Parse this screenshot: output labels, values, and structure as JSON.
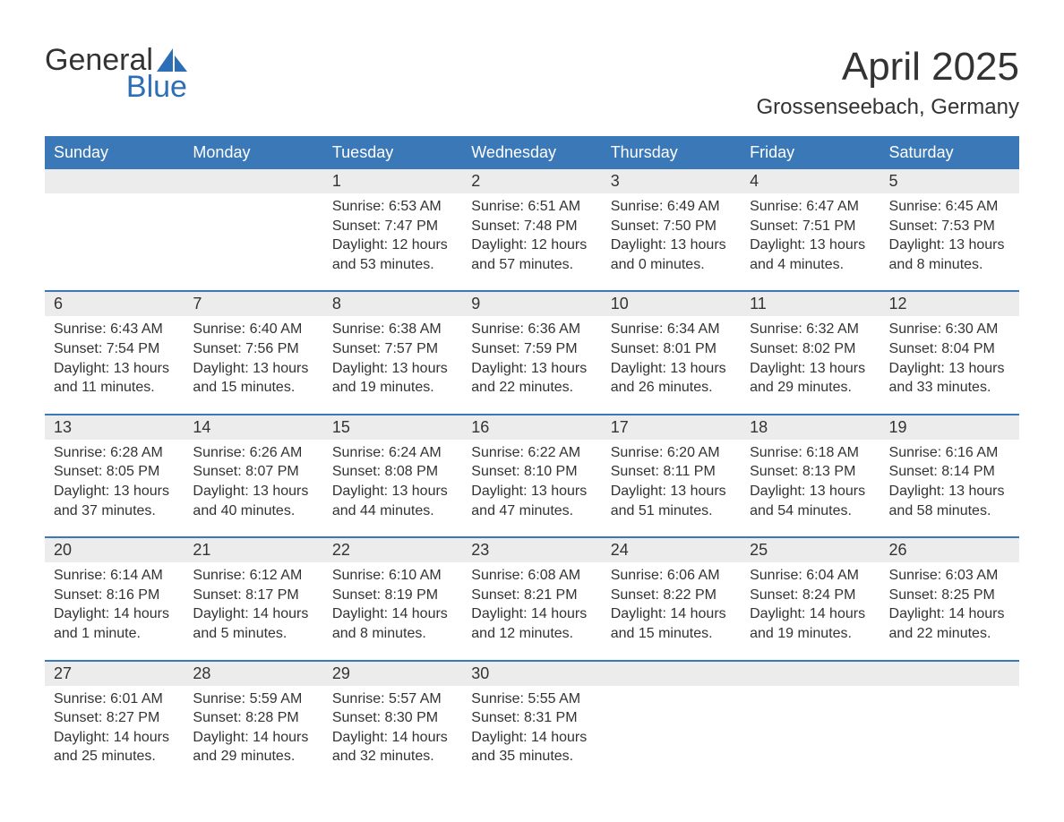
{
  "logo": {
    "text_top": "General",
    "text_bottom": "Blue",
    "icon_color": "#2c6fb7"
  },
  "title": "April 2025",
  "location": "Grossenseebach, Germany",
  "colors": {
    "header_bg": "#3b78b8",
    "header_text": "#ffffff",
    "daynum_bg": "#ececec",
    "row_border": "#3b78b8",
    "text": "#333333",
    "background": "#ffffff"
  },
  "weekdays": [
    "Sunday",
    "Monday",
    "Tuesday",
    "Wednesday",
    "Thursday",
    "Friday",
    "Saturday"
  ],
  "weeks": [
    [
      {
        "day": "",
        "sunrise": "",
        "sunset": "",
        "daylight": ""
      },
      {
        "day": "",
        "sunrise": "",
        "sunset": "",
        "daylight": ""
      },
      {
        "day": "1",
        "sunrise": "Sunrise: 6:53 AM",
        "sunset": "Sunset: 7:47 PM",
        "daylight": "Daylight: 12 hours and 53 minutes."
      },
      {
        "day": "2",
        "sunrise": "Sunrise: 6:51 AM",
        "sunset": "Sunset: 7:48 PM",
        "daylight": "Daylight: 12 hours and 57 minutes."
      },
      {
        "day": "3",
        "sunrise": "Sunrise: 6:49 AM",
        "sunset": "Sunset: 7:50 PM",
        "daylight": "Daylight: 13 hours and 0 minutes."
      },
      {
        "day": "4",
        "sunrise": "Sunrise: 6:47 AM",
        "sunset": "Sunset: 7:51 PM",
        "daylight": "Daylight: 13 hours and 4 minutes."
      },
      {
        "day": "5",
        "sunrise": "Sunrise: 6:45 AM",
        "sunset": "Sunset: 7:53 PM",
        "daylight": "Daylight: 13 hours and 8 minutes."
      }
    ],
    [
      {
        "day": "6",
        "sunrise": "Sunrise: 6:43 AM",
        "sunset": "Sunset: 7:54 PM",
        "daylight": "Daylight: 13 hours and 11 minutes."
      },
      {
        "day": "7",
        "sunrise": "Sunrise: 6:40 AM",
        "sunset": "Sunset: 7:56 PM",
        "daylight": "Daylight: 13 hours and 15 minutes."
      },
      {
        "day": "8",
        "sunrise": "Sunrise: 6:38 AM",
        "sunset": "Sunset: 7:57 PM",
        "daylight": "Daylight: 13 hours and 19 minutes."
      },
      {
        "day": "9",
        "sunrise": "Sunrise: 6:36 AM",
        "sunset": "Sunset: 7:59 PM",
        "daylight": "Daylight: 13 hours and 22 minutes."
      },
      {
        "day": "10",
        "sunrise": "Sunrise: 6:34 AM",
        "sunset": "Sunset: 8:01 PM",
        "daylight": "Daylight: 13 hours and 26 minutes."
      },
      {
        "day": "11",
        "sunrise": "Sunrise: 6:32 AM",
        "sunset": "Sunset: 8:02 PM",
        "daylight": "Daylight: 13 hours and 29 minutes."
      },
      {
        "day": "12",
        "sunrise": "Sunrise: 6:30 AM",
        "sunset": "Sunset: 8:04 PM",
        "daylight": "Daylight: 13 hours and 33 minutes."
      }
    ],
    [
      {
        "day": "13",
        "sunrise": "Sunrise: 6:28 AM",
        "sunset": "Sunset: 8:05 PM",
        "daylight": "Daylight: 13 hours and 37 minutes."
      },
      {
        "day": "14",
        "sunrise": "Sunrise: 6:26 AM",
        "sunset": "Sunset: 8:07 PM",
        "daylight": "Daylight: 13 hours and 40 minutes."
      },
      {
        "day": "15",
        "sunrise": "Sunrise: 6:24 AM",
        "sunset": "Sunset: 8:08 PM",
        "daylight": "Daylight: 13 hours and 44 minutes."
      },
      {
        "day": "16",
        "sunrise": "Sunrise: 6:22 AM",
        "sunset": "Sunset: 8:10 PM",
        "daylight": "Daylight: 13 hours and 47 minutes."
      },
      {
        "day": "17",
        "sunrise": "Sunrise: 6:20 AM",
        "sunset": "Sunset: 8:11 PM",
        "daylight": "Daylight: 13 hours and 51 minutes."
      },
      {
        "day": "18",
        "sunrise": "Sunrise: 6:18 AM",
        "sunset": "Sunset: 8:13 PM",
        "daylight": "Daylight: 13 hours and 54 minutes."
      },
      {
        "day": "19",
        "sunrise": "Sunrise: 6:16 AM",
        "sunset": "Sunset: 8:14 PM",
        "daylight": "Daylight: 13 hours and 58 minutes."
      }
    ],
    [
      {
        "day": "20",
        "sunrise": "Sunrise: 6:14 AM",
        "sunset": "Sunset: 8:16 PM",
        "daylight": "Daylight: 14 hours and 1 minute."
      },
      {
        "day": "21",
        "sunrise": "Sunrise: 6:12 AM",
        "sunset": "Sunset: 8:17 PM",
        "daylight": "Daylight: 14 hours and 5 minutes."
      },
      {
        "day": "22",
        "sunrise": "Sunrise: 6:10 AM",
        "sunset": "Sunset: 8:19 PM",
        "daylight": "Daylight: 14 hours and 8 minutes."
      },
      {
        "day": "23",
        "sunrise": "Sunrise: 6:08 AM",
        "sunset": "Sunset: 8:21 PM",
        "daylight": "Daylight: 14 hours and 12 minutes."
      },
      {
        "day": "24",
        "sunrise": "Sunrise: 6:06 AM",
        "sunset": "Sunset: 8:22 PM",
        "daylight": "Daylight: 14 hours and 15 minutes."
      },
      {
        "day": "25",
        "sunrise": "Sunrise: 6:04 AM",
        "sunset": "Sunset: 8:24 PM",
        "daylight": "Daylight: 14 hours and 19 minutes."
      },
      {
        "day": "26",
        "sunrise": "Sunrise: 6:03 AM",
        "sunset": "Sunset: 8:25 PM",
        "daylight": "Daylight: 14 hours and 22 minutes."
      }
    ],
    [
      {
        "day": "27",
        "sunrise": "Sunrise: 6:01 AM",
        "sunset": "Sunset: 8:27 PM",
        "daylight": "Daylight: 14 hours and 25 minutes."
      },
      {
        "day": "28",
        "sunrise": "Sunrise: 5:59 AM",
        "sunset": "Sunset: 8:28 PM",
        "daylight": "Daylight: 14 hours and 29 minutes."
      },
      {
        "day": "29",
        "sunrise": "Sunrise: 5:57 AM",
        "sunset": "Sunset: 8:30 PM",
        "daylight": "Daylight: 14 hours and 32 minutes."
      },
      {
        "day": "30",
        "sunrise": "Sunrise: 5:55 AM",
        "sunset": "Sunset: 8:31 PM",
        "daylight": "Daylight: 14 hours and 35 minutes."
      },
      {
        "day": "",
        "sunrise": "",
        "sunset": "",
        "daylight": ""
      },
      {
        "day": "",
        "sunrise": "",
        "sunset": "",
        "daylight": ""
      },
      {
        "day": "",
        "sunrise": "",
        "sunset": "",
        "daylight": ""
      }
    ]
  ]
}
